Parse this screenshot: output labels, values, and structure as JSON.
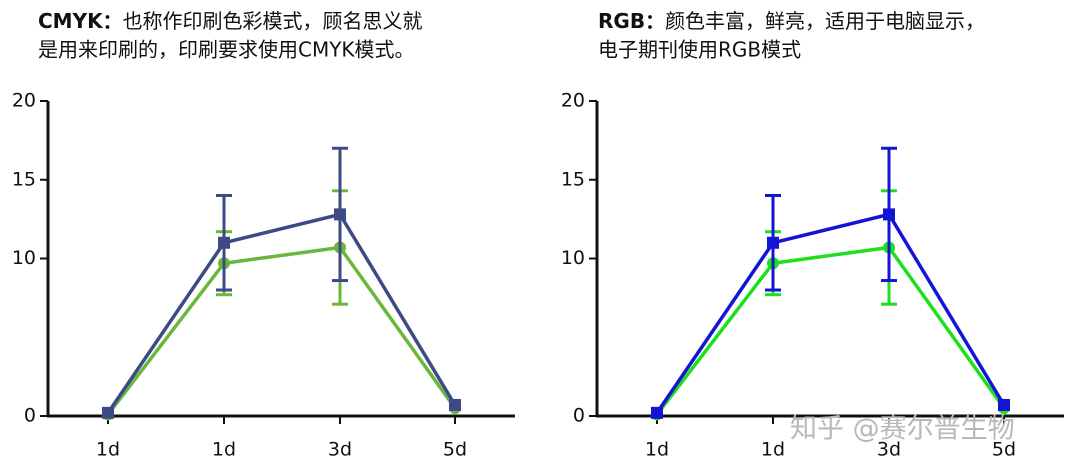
{
  "chart_data": [
    {
      "type": "line",
      "heading": {
        "label": "CMYK：",
        "lines": [
          "也称作印刷色彩模式，顾名思义就",
          "是用来印刷的，印刷要求使用CMYK模式。"
        ]
      },
      "categories": [
        "1d",
        "1d",
        "3d",
        "5d"
      ],
      "ylim": [
        0,
        20
      ],
      "yticks": [
        0,
        10,
        15,
        20
      ],
      "series": [
        {
          "color": "#6ab73e",
          "marker": "circle",
          "values": [
            0.1,
            9.7,
            10.7,
            0.5
          ],
          "errors": [
            0,
            2,
            3.6,
            0
          ]
        },
        {
          "color": "#3d4a86",
          "marker": "square",
          "values": [
            0.2,
            11,
            12.8,
            0.7
          ],
          "errors": [
            0,
            3,
            4.2,
            0
          ]
        }
      ]
    },
    {
      "type": "line",
      "heading": {
        "label": "RGB：",
        "lines": [
          "颜色丰富，鲜亮，适用于电脑显示，",
          "电子期刊使用RGB模式"
        ]
      },
      "categories": [
        "1d",
        "1d",
        "3d",
        "5d"
      ],
      "ylim": [
        0,
        20
      ],
      "yticks": [
        0,
        10,
        15,
        20
      ],
      "series": [
        {
          "color": "#1de01d",
          "marker": "circle",
          "values": [
            0.1,
            9.7,
            10.7,
            0.5
          ],
          "errors": [
            0,
            2,
            3.6,
            0
          ]
        },
        {
          "color": "#1414d6",
          "marker": "square",
          "values": [
            0.2,
            11,
            12.8,
            0.7
          ],
          "errors": [
            0,
            3,
            4.2,
            0
          ]
        }
      ]
    }
  ],
  "watermark": "知乎 @赛尔普生物"
}
